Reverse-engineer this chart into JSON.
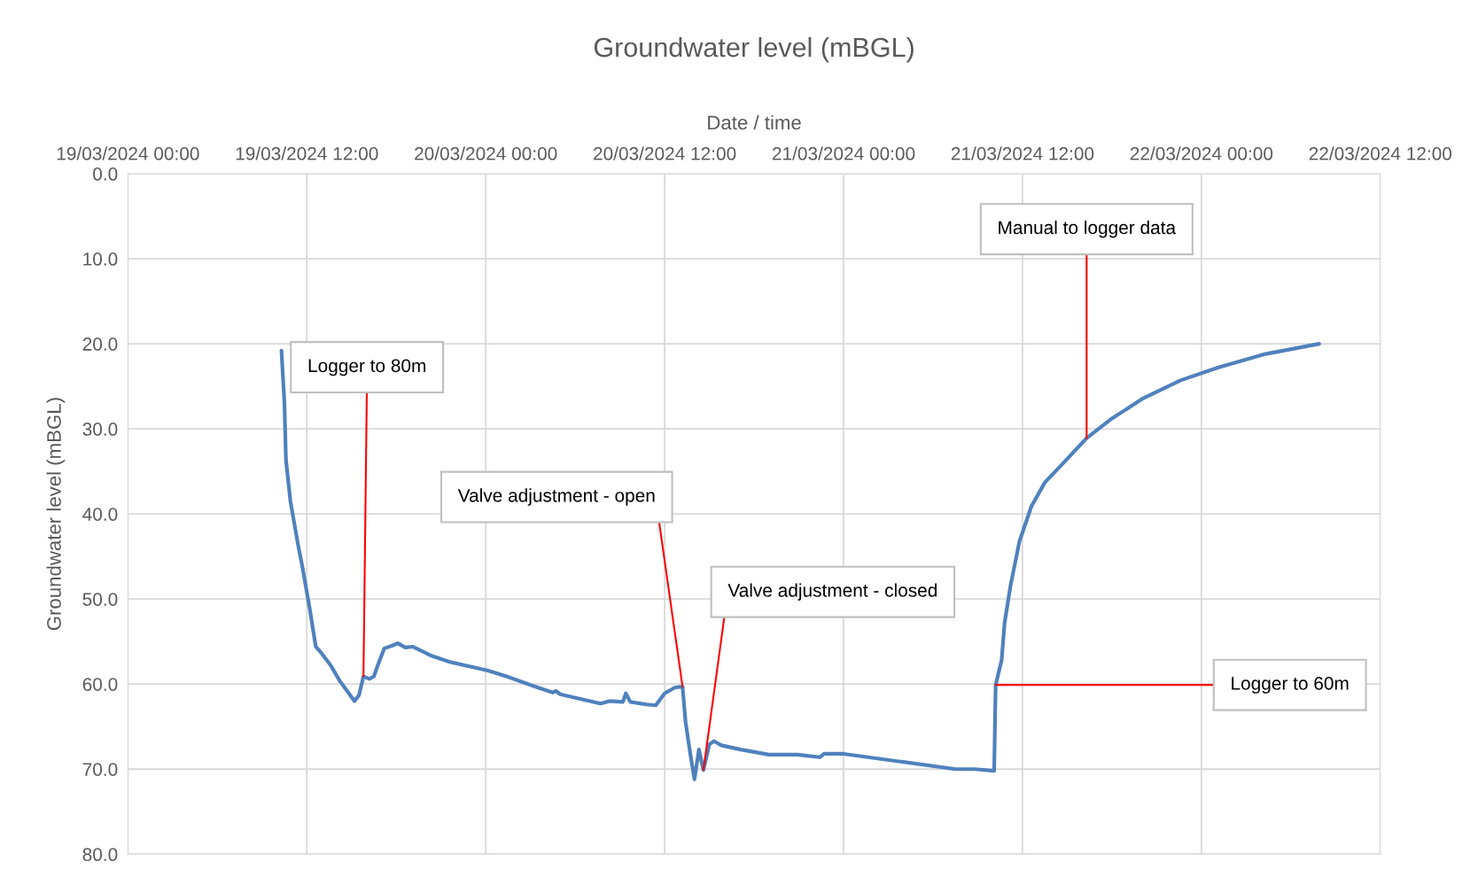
{
  "chart_data": {
    "type": "line",
    "title": "Groundwater level (mBGL)",
    "xlabel": "Date / time",
    "ylabel": "Groundwater level (mBGL)",
    "x": [
      "2024-03-19T10:18",
      "2024-03-19T10:30",
      "2024-03-19T10:36",
      "2024-03-19T10:54",
      "2024-03-19T11:24",
      "2024-03-19T11:42",
      "2024-03-19T12:12",
      "2024-03-19T12:36",
      "2024-03-19T13:00",
      "2024-03-19T13:36",
      "2024-03-19T14:12",
      "2024-03-19T15:12",
      "2024-03-19T15:30",
      "2024-03-19T15:48",
      "2024-03-19T16:12",
      "2024-03-19T16:30",
      "2024-03-19T16:48",
      "2024-03-19T17:12",
      "2024-03-19T17:42",
      "2024-03-19T18:06",
      "2024-03-19T18:36",
      "2024-03-19T19:06",
      "2024-03-19T20:24",
      "2024-03-19T21:36",
      "2024-03-20T00:06",
      "2024-03-20T01:24",
      "2024-03-20T03:18",
      "2024-03-20T04:30",
      "2024-03-20T04:42",
      "2024-03-20T05:00",
      "2024-03-20T07:42",
      "2024-03-20T08:18",
      "2024-03-20T09:12",
      "2024-03-20T09:24",
      "2024-03-20T09:42",
      "2024-03-20T10:48",
      "2024-03-20T11:24",
      "2024-03-20T12:00",
      "2024-03-20T12:42",
      "2024-03-20T13:12",
      "2024-03-20T13:24",
      "2024-03-20T13:42",
      "2024-03-20T14:00",
      "2024-03-20T14:18",
      "2024-03-20T14:36",
      "2024-03-20T14:48",
      "2024-03-20T15:00",
      "2024-03-20T15:18",
      "2024-03-20T15:48",
      "2024-03-20T17:06",
      "2024-03-20T19:00",
      "2024-03-20T20:54",
      "2024-03-20T22:24",
      "2024-03-20T22:42",
      "2024-03-21T00:00",
      "2024-03-21T07:30",
      "2024-03-21T08:48",
      "2024-03-21T10:06",
      "2024-03-21T10:12",
      "2024-03-21T10:36",
      "2024-03-21T10:48",
      "2024-03-21T11:12",
      "2024-03-21T11:48",
      "2024-03-21T12:36",
      "2024-03-21T13:30",
      "2024-03-21T14:48",
      "2024-03-21T16:18",
      "2024-03-21T17:54",
      "2024-03-21T20:06",
      "2024-03-21T22:36",
      "2024-03-22T01:06",
      "2024-03-22T04:18",
      "2024-03-22T07:54"
    ],
    "series": [
      {
        "color": "#4f81bd",
        "values": [
          20.8,
          27,
          33.6,
          38.5,
          43.5,
          46.2,
          51.2,
          55.6,
          56.4,
          57.8,
          59.6,
          62.0,
          61.3,
          59.1,
          59.4,
          59.1,
          57.6,
          55.8,
          55.5,
          55.2,
          55.7,
          55.6,
          56.7,
          57.4,
          58.4,
          59.1,
          60.3,
          61.0,
          60.8,
          61.2,
          62.3,
          62.0,
          62.1,
          61.1,
          62.1,
          62.4,
          62.5,
          61.1,
          60.4,
          60.3,
          64.4,
          68.0,
          71.2,
          67.7,
          70.1,
          68.6,
          67.1,
          66.7,
          67.2,
          67.7,
          68.3,
          68.3,
          68.6,
          68.2,
          68.2,
          70.0,
          70.0,
          70.2,
          60.1,
          57.2,
          52.8,
          48.4,
          43.2,
          39.1,
          36.3,
          33.9,
          31.1,
          28.9,
          26.4,
          24.3,
          22.8,
          21.2,
          20.0
        ]
      }
    ],
    "xlim": [
      "2024-03-19T00:00",
      "2024-03-22T12:00"
    ],
    "xticks": [
      {
        "value": "2024-03-19T00:00",
        "label": "19/03/2024 00:00"
      },
      {
        "value": "2024-03-19T12:00",
        "label": "19/03/2024 12:00"
      },
      {
        "value": "2024-03-20T00:00",
        "label": "20/03/2024 00:00"
      },
      {
        "value": "2024-03-20T12:00",
        "label": "20/03/2024 12:00"
      },
      {
        "value": "2024-03-21T00:00",
        "label": "21/03/2024 00:00"
      },
      {
        "value": "2024-03-21T12:00",
        "label": "21/03/2024 12:00"
      },
      {
        "value": "2024-03-22T00:00",
        "label": "22/03/2024 00:00"
      },
      {
        "value": "2024-03-22T12:00",
        "label": "22/03/2024 12:00"
      }
    ],
    "ylim": [
      80,
      0
    ],
    "yticks": [
      {
        "value": 0,
        "label": "0.0"
      },
      {
        "value": 10,
        "label": "10.0"
      },
      {
        "value": 20,
        "label": "20.0"
      },
      {
        "value": 30,
        "label": "30.0"
      },
      {
        "value": 40,
        "label": "40.0"
      },
      {
        "value": 50,
        "label": "50.0"
      },
      {
        "value": 60,
        "label": "60.0"
      },
      {
        "value": 70,
        "label": "70.0"
      },
      {
        "value": 80,
        "label": "80.0"
      }
    ],
    "annotations": [
      {
        "text": "Logger to 80m",
        "x": "2024-03-19T15:48",
        "y": 59.1
      },
      {
        "text": "Valve adjustment - open",
        "x": "2024-03-20T13:12",
        "y": 60.3
      },
      {
        "text": "Valve adjustment - closed",
        "x": "2024-03-20T14:36",
        "y": 70.1
      },
      {
        "text": "Manual to logger data",
        "x": "2024-03-21T16:18",
        "y": 31.1
      },
      {
        "text": "Logger to 60m",
        "x": "2024-03-21T10:12",
        "y": 60.1
      }
    ],
    "grid": true,
    "marker": "none",
    "line_style": "solid"
  }
}
